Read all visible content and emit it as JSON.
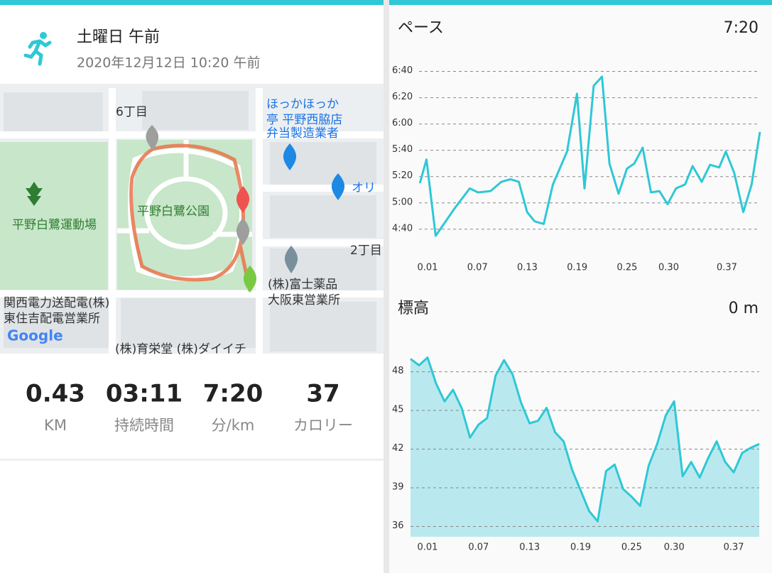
{
  "header": {
    "title": "土曜日 午前",
    "datetime": "2020年12月12日 10:20 午前"
  },
  "map": {
    "labels": [
      "6丁目",
      "ほっかほっか",
      "亭 平野西脇店",
      "弁当製造業者",
      "オリ",
      "平野白鷺運動場",
      "平野白鷺公園",
      "2丁目",
      "(株)富士薬品",
      "大阪東営業所",
      "関西電力送配電(株)",
      "東住吉配電営業所",
      "(株)育栄堂 (株)ダイイチ",
      "Google"
    ]
  },
  "stats": [
    {
      "value": "0.43",
      "label": "KM"
    },
    {
      "value": "03:11",
      "label": "持続時間"
    },
    {
      "value": "7:20",
      "label": "分/km"
    },
    {
      "value": "37",
      "label": "カロリー"
    }
  ],
  "charts": [
    {
      "type": "line",
      "title": "ペース",
      "value": "7:20",
      "color": "#2ec8d6",
      "area": false,
      "x": [
        0.011,
        0.019,
        0.03,
        0.041,
        0.053,
        0.071,
        0.081,
        0.096,
        0.109,
        0.12,
        0.13,
        0.14,
        0.149,
        0.16,
        0.171,
        0.188,
        0.2,
        0.209,
        0.22,
        0.23,
        0.239,
        0.25,
        0.26,
        0.269,
        0.279,
        0.289,
        0.299,
        0.309,
        0.319,
        0.33,
        0.339,
        0.35,
        0.36,
        0.371,
        0.379,
        0.389,
        0.4,
        0.41,
        0.42
      ],
      "values": [
        315,
        333,
        275,
        285,
        296,
        311,
        308,
        309,
        316,
        318,
        316,
        293,
        286,
        284,
        314,
        339,
        383,
        311,
        389,
        396,
        330,
        307,
        326,
        330,
        342,
        308,
        309,
        299,
        311,
        314,
        328,
        316,
        329,
        327,
        339,
        323,
        293,
        314,
        354
      ],
      "xlim": [
        0.01,
        0.42
      ],
      "ylim": [
        261,
        403
      ],
      "xticks": [
        0.01,
        0.07,
        0.13,
        0.19,
        0.25,
        {
          "value": 0.3,
          "label": "0.30"
        },
        0.37
      ],
      "yticks": [
        {
          "value": 280,
          "label": "4:40"
        },
        {
          "value": 300,
          "label": "5:00"
        },
        {
          "value": 320,
          "label": "5:20"
        },
        {
          "value": 340,
          "label": "5:40"
        },
        {
          "value": 360,
          "label": "6:00"
        },
        {
          "value": 380,
          "label": "6:20"
        },
        {
          "value": 400,
          "label": "6:40"
        }
      ]
    },
    {
      "type": "line",
      "title": "標高",
      "value": "0 m",
      "color": "#2ec8d6",
      "area": true,
      "area_color": "#b9e9ee",
      "x": [
        0,
        0.01,
        0.02,
        0.03,
        0.04,
        0.05,
        0.06,
        0.07,
        0.08,
        0.09,
        0.1,
        0.11,
        0.12,
        0.13,
        0.14,
        0.15,
        0.16,
        0.17,
        0.18,
        0.19,
        0.2,
        0.21,
        0.22,
        0.23,
        0.24,
        0.25,
        0.26,
        0.27,
        0.28,
        0.29,
        0.3,
        0.31,
        0.32,
        0.33,
        0.34,
        0.35,
        0.36,
        0.37,
        0.38,
        0.39,
        0.4,
        0.41
      ],
      "values": [
        49.0,
        48.5,
        49.1,
        47.1,
        45.7,
        46.6,
        45.2,
        42.9,
        43.9,
        44.4,
        47.7,
        48.9,
        47.8,
        45.6,
        44.0,
        44.2,
        45.2,
        43.3,
        42.6,
        40.4,
        38.8,
        37.2,
        36.4,
        40.3,
        40.8,
        38.9,
        38.3,
        37.6,
        40.7,
        42.4,
        44.6,
        45.7,
        39.9,
        41.0,
        39.8,
        41.3,
        42.6,
        41.0,
        40.2,
        41.7,
        42.1,
        42.4
      ],
      "xlim": [
        0,
        0.41
      ],
      "ylim": [
        35.2,
        50.4
      ],
      "xticks": [
        0.01,
        0.07,
        0.13,
        0.19,
        0.25,
        {
          "value": 0.3,
          "label": "0.30"
        },
        0.37
      ],
      "yticks": [
        36,
        39,
        42,
        45,
        48
      ]
    }
  ]
}
